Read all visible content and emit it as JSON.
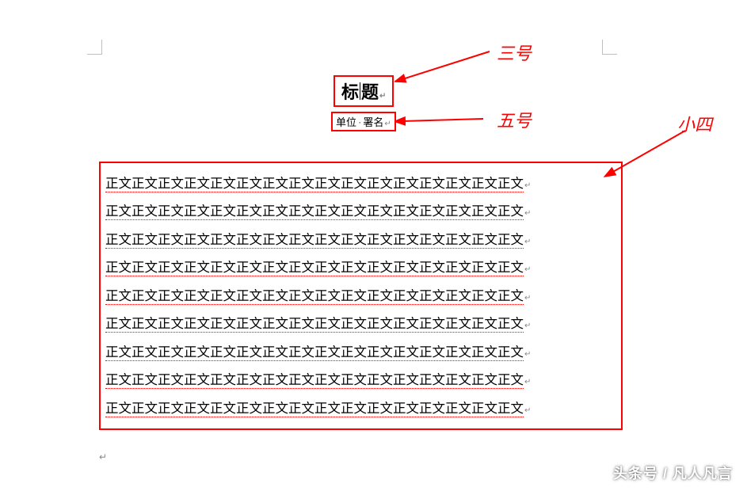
{
  "corners": {
    "color": "#bfbfbf"
  },
  "title": {
    "text_before": "标",
    "text_after": "题"
  },
  "byline": {
    "left": "单位",
    "right": "署名"
  },
  "body": {
    "repeat_unit": "正文",
    "units_per_line": 16,
    "lines": 9
  },
  "annotations": {
    "a1": "三号",
    "a2": "五号",
    "a3": "小四"
  },
  "arrows": {
    "color": "#ff0000"
  },
  "watermark": "头条号 / 凡人凡言"
}
